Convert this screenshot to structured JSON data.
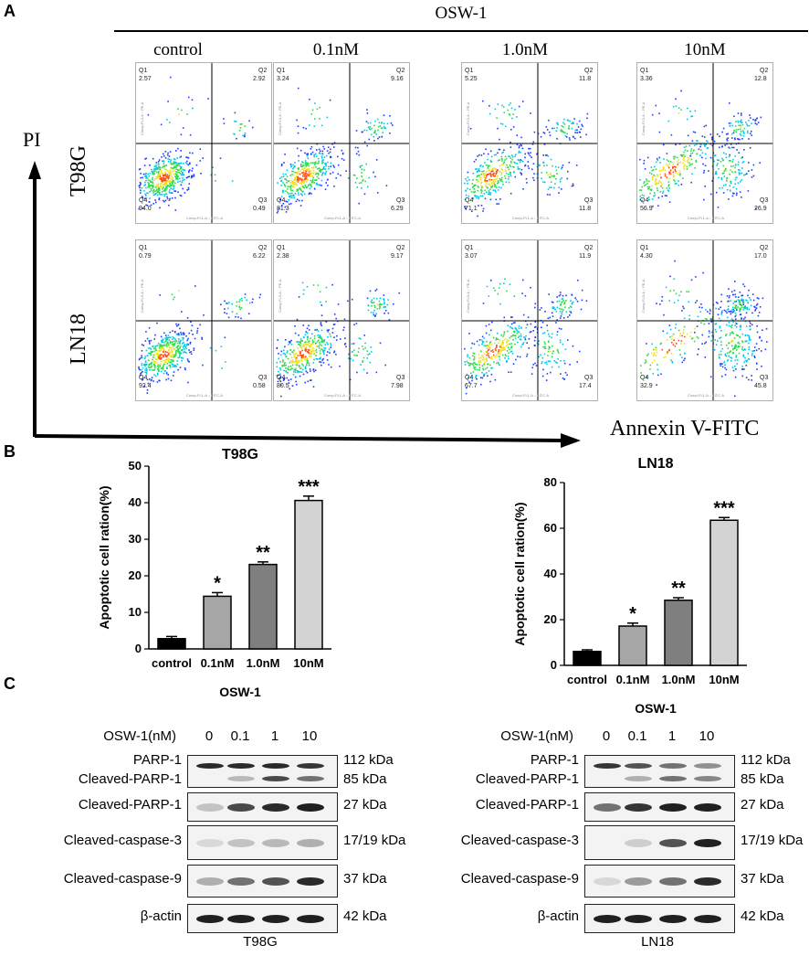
{
  "panelA": {
    "letter": "A",
    "treatment_label": "OSW-1",
    "concentrations": [
      "control",
      "0.1nM",
      "1.0nM",
      "10nM"
    ],
    "cell_lines": [
      "T98G",
      "LN18"
    ],
    "y_axis_label": "PI",
    "x_axis_label": "Annexin V-FITC",
    "axis_tiny_x": "Comp-FL1-A :: FITC-A",
    "axis_tiny_y": "Comp-FL3-A :: PE-A",
    "quadrant_names": {
      "q1": "Q1",
      "q2": "Q2",
      "q3": "Q3",
      "q4": "Q4"
    },
    "plots": [
      {
        "cell_line": "T98G",
        "conc": "control",
        "q1": "2.57",
        "q2": "2.92",
        "q3": "0.49",
        "q4": "94.0"
      },
      {
        "cell_line": "T98G",
        "conc": "0.1nM",
        "q1": "3.24",
        "q2": "9.16",
        "q3": "6.29",
        "q4": "81.3"
      },
      {
        "cell_line": "T98G",
        "conc": "1.0nM",
        "q1": "5.25",
        "q2": "11.8",
        "q3": "11.8",
        "q4": "71.1"
      },
      {
        "cell_line": "T98G",
        "conc": "10nM",
        "q1": "3.36",
        "q2": "12.8",
        "q3": "26.9",
        "q4": "56.9"
      },
      {
        "cell_line": "LN18",
        "conc": "control",
        "q1": "0.79",
        "q2": "6.22",
        "q3": "0.58",
        "q4": "92.4"
      },
      {
        "cell_line": "LN18",
        "conc": "0.1nM",
        "q1": "2.38",
        "q2": "9.17",
        "q3": "7.98",
        "q4": "80.5"
      },
      {
        "cell_line": "LN18",
        "conc": "1.0nM",
        "q1": "3.07",
        "q2": "11.9",
        "q3": "17.4",
        "q4": "67.7"
      },
      {
        "cell_line": "LN18",
        "conc": "10nM",
        "q1": "4.30",
        "q2": "17.0",
        "q3": "45.8",
        "q4": "32.9"
      }
    ]
  },
  "panelB": {
    "letter": "B",
    "chart_data": [
      {
        "type": "bar",
        "title": "T98G",
        "categories": [
          "control",
          "0.1nM",
          "1.0nM",
          "10nM"
        ],
        "values": [
          2.8,
          14.4,
          23.1,
          40.6
        ],
        "errors": [
          0.6,
          1.0,
          0.7,
          1.2
        ],
        "significance": [
          "",
          "*",
          "**",
          "***"
        ],
        "xlabel": "OSW-1",
        "ylabel": "Apoptotic cell ration(%)",
        "ylim": [
          0,
          50
        ],
        "yticks": [
          0,
          10,
          20,
          30,
          40,
          50
        ],
        "colors": [
          "#000000",
          "#a6a6a6",
          "#7f7f7f",
          "#d3d3d3"
        ]
      },
      {
        "type": "bar",
        "title": "LN18",
        "categories": [
          "control",
          "0.1nM",
          "1.0nM",
          "10nM"
        ],
        "values": [
          6.1,
          17.2,
          28.5,
          63.5
        ],
        "errors": [
          0.7,
          1.3,
          1.1,
          1.2
        ],
        "significance": [
          "",
          "*",
          "**",
          "***"
        ],
        "xlabel": "OSW-1",
        "ylabel": "Apoptotic cell ration(%)",
        "ylim": [
          0,
          80
        ],
        "yticks": [
          0,
          20,
          40,
          60,
          80
        ],
        "colors": [
          "#000000",
          "#a6a6a6",
          "#7f7f7f",
          "#d3d3d3"
        ]
      }
    ]
  },
  "panelC": {
    "letter": "C",
    "header_label": "OSW-1(nM)",
    "lanes": [
      "0",
      "0.1",
      "1",
      "10"
    ],
    "blots": [
      {
        "cell_line": "T98G",
        "rows": [
          {
            "labels": [
              "PARP-1",
              "Cleaved-PARP-1"
            ],
            "kda": [
              "112 kDa",
              "85 kDa"
            ],
            "intensity": [
              [
                0.95,
                0.95,
                0.95,
                0.9
              ],
              [
                0.0,
                0.25,
                0.8,
                0.6
              ]
            ]
          },
          {
            "labels": [
              "Cleaved-PARP-1"
            ],
            "kda": [
              "27 kDa"
            ],
            "intensity": [
              [
                0.2,
                0.8,
                0.95,
                1.0
              ]
            ]
          },
          {
            "labels": [
              "Cleaved-caspase-3"
            ],
            "kda": [
              "17/19 kDa"
            ],
            "intensity": [
              [
                0.1,
                0.2,
                0.25,
                0.3
              ]
            ]
          },
          {
            "labels": [
              "Cleaved-caspase-9"
            ],
            "kda": [
              "37 kDa"
            ],
            "intensity": [
              [
                0.3,
                0.6,
                0.75,
                0.95
              ]
            ]
          },
          {
            "labels": [
              "β-actin"
            ],
            "kda": [
              "42 kDa"
            ],
            "intensity": [
              [
                1.0,
                1.0,
                1.0,
                1.0
              ]
            ]
          }
        ]
      },
      {
        "cell_line": "LN18",
        "rows": [
          {
            "labels": [
              "PARP-1",
              "Cleaved-PARP-1"
            ],
            "kda": [
              "112 kDa",
              "85 kDa"
            ],
            "intensity": [
              [
                0.9,
                0.75,
                0.6,
                0.45
              ],
              [
                0.0,
                0.3,
                0.6,
                0.5
              ]
            ]
          },
          {
            "labels": [
              "Cleaved-PARP-1"
            ],
            "kda": [
              "27 kDa"
            ],
            "intensity": [
              [
                0.6,
                0.9,
                1.0,
                1.0
              ]
            ]
          },
          {
            "labels": [
              "Cleaved-caspase-3"
            ],
            "kda": [
              "17/19 kDa"
            ],
            "intensity": [
              [
                0.0,
                0.15,
                0.75,
                1.0
              ]
            ]
          },
          {
            "labels": [
              "Cleaved-caspase-9"
            ],
            "kda": [
              "37 kDa"
            ],
            "intensity": [
              [
                0.1,
                0.4,
                0.6,
                0.95
              ]
            ]
          },
          {
            "labels": [
              "β-actin"
            ],
            "kda": [
              "42 kDa"
            ],
            "intensity": [
              [
                1.0,
                1.0,
                1.0,
                1.0
              ]
            ]
          }
        ]
      }
    ]
  }
}
